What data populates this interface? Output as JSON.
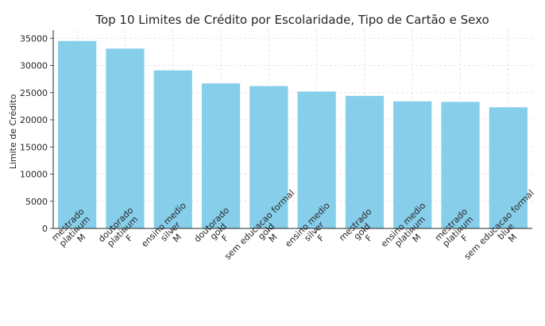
{
  "chart_data": {
    "type": "bar",
    "title": "Top 10 Limites de Crédito por Escolaridade, Tipo de Cartão e Sexo",
    "xlabel": "",
    "ylabel": "Limite de Crédito",
    "ylim": [
      0,
      36500
    ],
    "yticks": [
      0,
      5000,
      10000,
      15000,
      20000,
      25000,
      30000,
      35000
    ],
    "grid": true,
    "bar_color": "#87ceeb",
    "categories": [
      [
        "mestrado",
        "platinum",
        "M"
      ],
      [
        "doutorado",
        "platinum",
        "F"
      ],
      [
        "ensino medio",
        "silver",
        "M"
      ],
      [
        "doutorado",
        "gold",
        "F"
      ],
      [
        "sem educacao formal",
        "gold",
        "M"
      ],
      [
        "ensino medio",
        "silver",
        "F"
      ],
      [
        "mestrado",
        "gold",
        "F"
      ],
      [
        "ensino medio",
        "platinum",
        "M"
      ],
      [
        "mestrado",
        "platinum",
        "F"
      ],
      [
        "sem educacao formal",
        "blue",
        "M"
      ]
    ],
    "values": [
      34500,
      33100,
      29100,
      26700,
      26200,
      25200,
      24400,
      23400,
      23300,
      22300
    ]
  }
}
